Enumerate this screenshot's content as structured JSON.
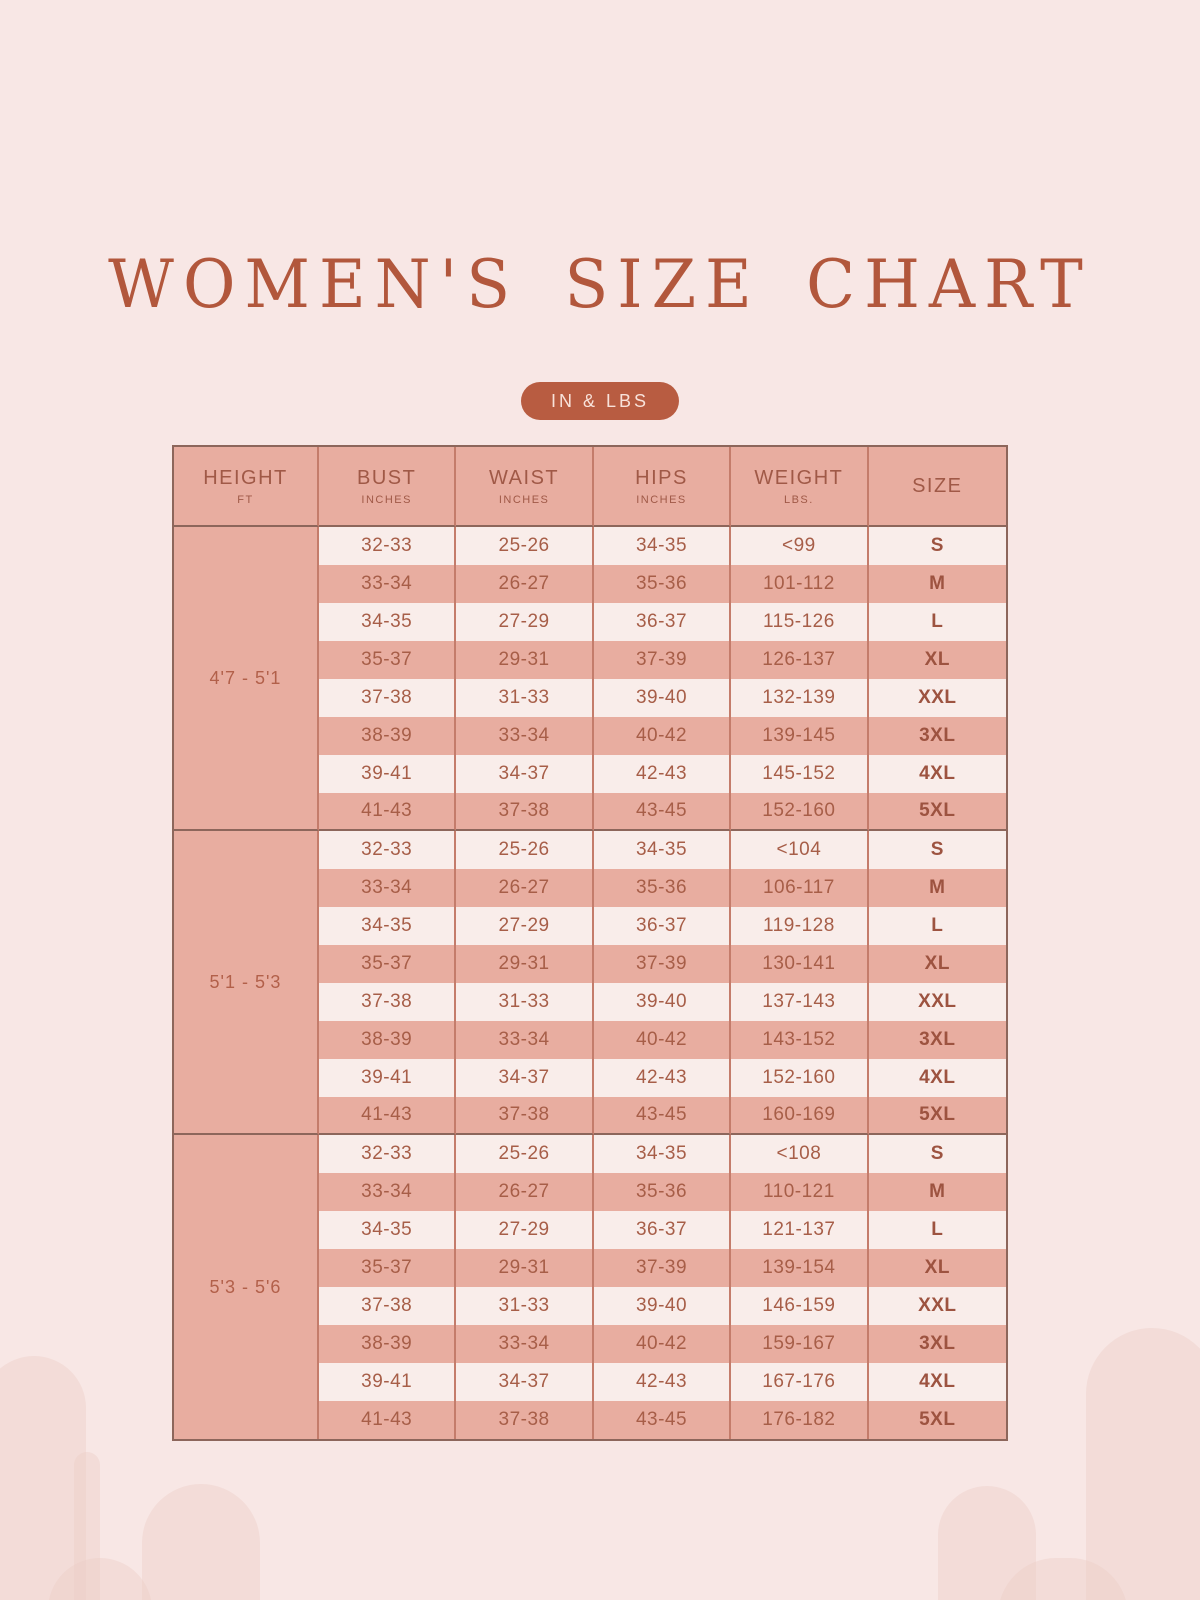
{
  "page": {
    "title": "WOMEN'S SIZE CHART",
    "badge": "IN & LBS",
    "colors": {
      "background": "#f8e7e5",
      "rose": "#e8ada0",
      "row_light": "#f9edea",
      "accent": "#b4583d",
      "text": "#a75e48",
      "border_dark": "#8d665b",
      "border_red": "#c47c6b"
    }
  },
  "table": {
    "columns": [
      {
        "label": "HEIGHT",
        "sub": "FT"
      },
      {
        "label": "BUST",
        "sub": "INCHES"
      },
      {
        "label": "WAIST",
        "sub": "INCHES"
      },
      {
        "label": "HIPS",
        "sub": "INCHES"
      },
      {
        "label": "WEIGHT",
        "sub": "LBS."
      },
      {
        "label": "SIZE",
        "sub": ""
      }
    ],
    "sections": [
      {
        "height": "4'7 - 5'1",
        "rows": [
          [
            "32-33",
            "25-26",
            "34-35",
            "<99",
            "S"
          ],
          [
            "33-34",
            "26-27",
            "35-36",
            "101-112",
            "M"
          ],
          [
            "34-35",
            "27-29",
            "36-37",
            "115-126",
            "L"
          ],
          [
            "35-37",
            "29-31",
            "37-39",
            "126-137",
            "XL"
          ],
          [
            "37-38",
            "31-33",
            "39-40",
            "132-139",
            "XXL"
          ],
          [
            "38-39",
            "33-34",
            "40-42",
            "139-145",
            "3XL"
          ],
          [
            "39-41",
            "34-37",
            "42-43",
            "145-152",
            "4XL"
          ],
          [
            "41-43",
            "37-38",
            "43-45",
            "152-160",
            "5XL"
          ]
        ]
      },
      {
        "height": "5'1 - 5'3",
        "rows": [
          [
            "32-33",
            "25-26",
            "34-35",
            "<104",
            "S"
          ],
          [
            "33-34",
            "26-27",
            "35-36",
            "106-117",
            "M"
          ],
          [
            "34-35",
            "27-29",
            "36-37",
            "119-128",
            "L"
          ],
          [
            "35-37",
            "29-31",
            "37-39",
            "130-141",
            "XL"
          ],
          [
            "37-38",
            "31-33",
            "39-40",
            "137-143",
            "XXL"
          ],
          [
            "38-39",
            "33-34",
            "40-42",
            "143-152",
            "3XL"
          ],
          [
            "39-41",
            "34-37",
            "42-43",
            "152-160",
            "4XL"
          ],
          [
            "41-43",
            "37-38",
            "43-45",
            "160-169",
            "5XL"
          ]
        ]
      },
      {
        "height": "5'3 - 5'6",
        "rows": [
          [
            "32-33",
            "25-26",
            "34-35",
            "<108",
            "S"
          ],
          [
            "33-34",
            "26-27",
            "35-36",
            "110-121",
            "M"
          ],
          [
            "34-35",
            "27-29",
            "36-37",
            "121-137",
            "L"
          ],
          [
            "35-37",
            "29-31",
            "37-39",
            "139-154",
            "XL"
          ],
          [
            "37-38",
            "31-33",
            "39-40",
            "146-159",
            "XXL"
          ],
          [
            "38-39",
            "33-34",
            "40-42",
            "159-167",
            "3XL"
          ],
          [
            "39-41",
            "34-37",
            "42-43",
            "167-176",
            "4XL"
          ],
          [
            "41-43",
            "37-38",
            "43-45",
            "176-182",
            "5XL"
          ]
        ]
      }
    ]
  }
}
